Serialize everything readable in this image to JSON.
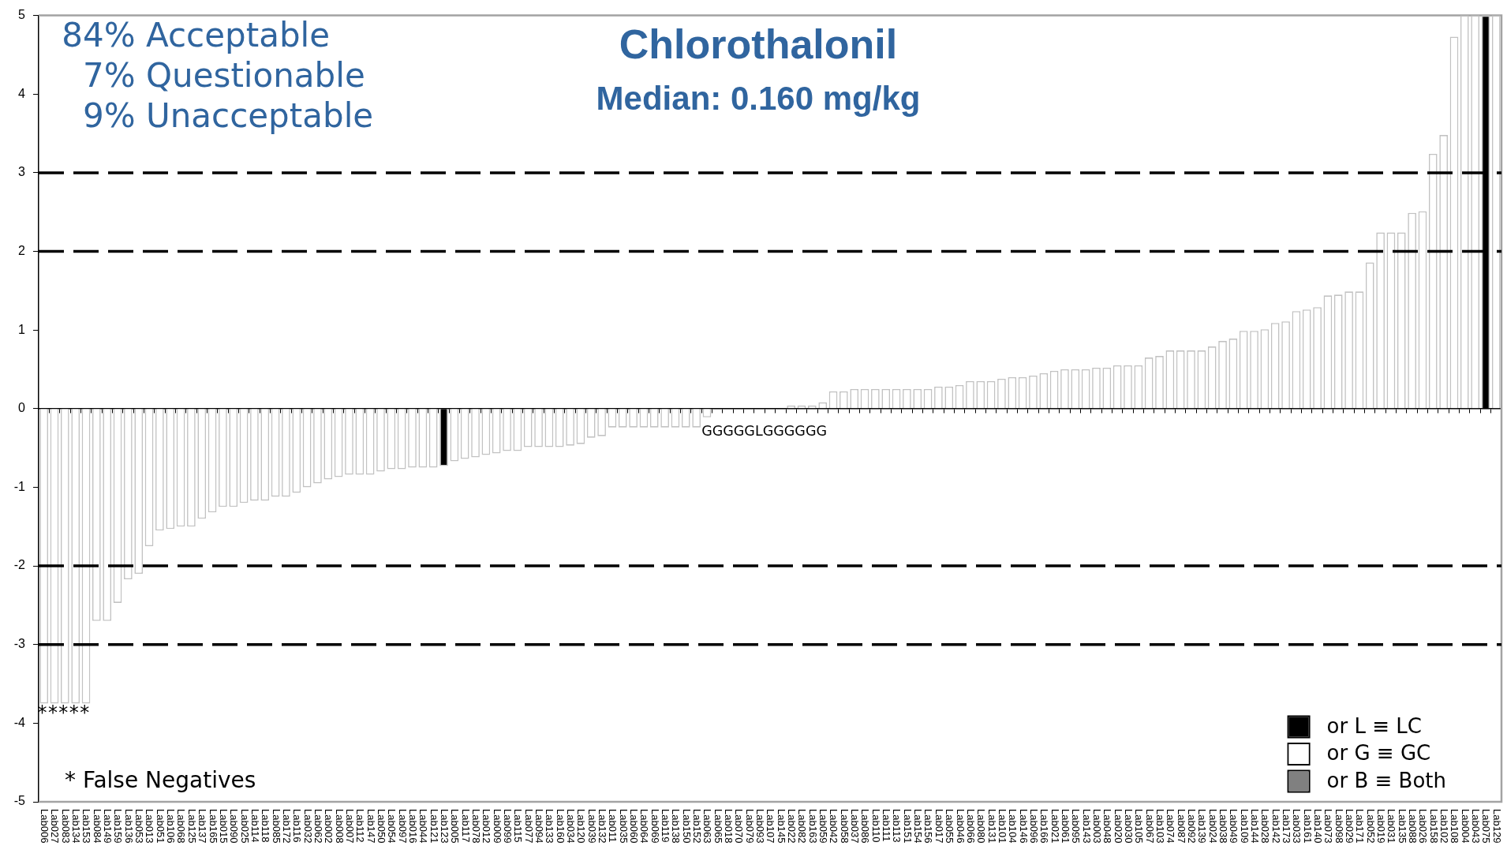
{
  "chart_data": {
    "type": "bar",
    "title": "Chlorothalonil",
    "subtitle": "Median: 0.160 mg/kg",
    "categories": [
      "Lab006",
      "Lab027",
      "Lab083",
      "Lab134",
      "Lab153",
      "Lab084",
      "Lab149",
      "Lab159",
      "Lab136",
      "Lab053",
      "Lab013",
      "Lab051",
      "Lab106",
      "Lab068",
      "Lab125",
      "Lab137",
      "Lab165",
      "Lab015",
      "Lab090",
      "Lab025",
      "Lab114",
      "Lab118",
      "Lab085",
      "Lab172",
      "Lab116",
      "Lab032",
      "Lab062",
      "Lab002",
      "Lab008",
      "Lab007",
      "Lab112",
      "Lab147",
      "Lab050",
      "Lab054",
      "Lab097",
      "Lab016",
      "Lab044",
      "Lab121",
      "Lab123",
      "Lab005",
      "Lab117",
      "Lab078",
      "Lab012",
      "Lab009",
      "Lab099",
      "Lab115",
      "Lab077",
      "Lab094",
      "Lab133",
      "Lab160",
      "Lab034",
      "Lab120",
      "Lab039",
      "Lab132",
      "Lab011",
      "Lab035",
      "Lab060",
      "Lab064",
      "Lab069",
      "Lab119",
      "Lab138",
      "Lab150",
      "Lab152",
      "Lab063",
      "Lab065",
      "Lab018",
      "Lab070",
      "Lab079",
      "Lab093",
      "Lab107",
      "Lab145",
      "Lab022",
      "Lab082",
      "Lab163",
      "Lab059",
      "Lab042",
      "Lab058",
      "Lab037",
      "Lab086",
      "Lab110",
      "Lab111",
      "Lab113",
      "Lab151",
      "Lab154",
      "Lab156",
      "Lab017",
      "Lab055",
      "Lab046",
      "Lab066",
      "Lab080",
      "Lab131",
      "Lab101",
      "Lab104",
      "Lab146",
      "Lab096",
      "Lab166",
      "Lab021",
      "Lab061",
      "Lab095",
      "Lab143",
      "Lab003",
      "Lab048",
      "Lab020",
      "Lab030",
      "Lab105",
      "Lab067",
      "Lab103",
      "Lab074",
      "Lab087",
      "Lab092",
      "Lab139",
      "Lab024",
      "Lab038",
      "Lab049",
      "Lab109",
      "Lab144",
      "Lab028",
      "Lab142",
      "Lab173",
      "Lab033",
      "Lab161",
      "Lab140",
      "Lab073",
      "Lab098",
      "Lab029",
      "Lab171",
      "Lab052",
      "Lab019",
      "Lab031",
      "Lab135",
      "Lab088",
      "Lab026",
      "Lab158",
      "Lab102",
      "Lab108",
      "Lab004",
      "Lab043",
      "Lab075",
      "Lab129"
    ],
    "series": [
      {
        "name": "or L ≡ LC",
        "color": "#000000",
        "values": [
          null,
          null,
          null,
          null,
          null,
          null,
          null,
          null,
          null,
          null,
          null,
          null,
          null,
          null,
          null,
          null,
          null,
          null,
          null,
          null,
          null,
          null,
          null,
          null,
          null,
          null,
          null,
          null,
          null,
          null,
          null,
          null,
          null,
          null,
          null,
          null,
          null,
          null,
          -0.73,
          null,
          null,
          null,
          null,
          null,
          null,
          null,
          null,
          null,
          null,
          null,
          null,
          null,
          null,
          null,
          null,
          null,
          null,
          null,
          null,
          null,
          null,
          null,
          null,
          null,
          null,
          null,
          null,
          null,
          null,
          null,
          null,
          null,
          null,
          null,
          null,
          null,
          null,
          null,
          null,
          null,
          null,
          null,
          null,
          null,
          null,
          null,
          null,
          null,
          null,
          null,
          null,
          null,
          null,
          null,
          null,
          null,
          null,
          null,
          null,
          null,
          null,
          null,
          null,
          null,
          null,
          null,
          null,
          null,
          null,
          null,
          null,
          null,
          null,
          null,
          null,
          null,
          null,
          null,
          null,
          null,
          null,
          null,
          null,
          null,
          null,
          null,
          null,
          null,
          null,
          null,
          null,
          null,
          null,
          null,
          null,
          null,
          null,
          5,
          null
        ]
      },
      {
        "name": "or G ≡ GC",
        "color": "#ffffff",
        "values": [
          -3.75,
          -3.75,
          -3.75,
          -3.75,
          -3.75,
          -2.7,
          -2.7,
          -2.47,
          -2.17,
          -2.1,
          -1.75,
          -1.55,
          -1.53,
          -1.5,
          -1.5,
          -1.4,
          -1.32,
          -1.25,
          -1.25,
          -1.2,
          -1.17,
          -1.17,
          -1.12,
          -1.12,
          -1.07,
          -1,
          -0.95,
          -0.9,
          -0.87,
          -0.84,
          -0.84,
          -0.84,
          -0.8,
          -0.77,
          -0.77,
          -0.75,
          -0.75,
          -0.75,
          null,
          -0.67,
          -0.64,
          -0.62,
          -0.59,
          -0.57,
          -0.54,
          -0.54,
          -0.49,
          -0.49,
          -0.49,
          -0.49,
          -0.47,
          -0.45,
          -0.37,
          -0.35,
          -0.24,
          -0.24,
          -0.24,
          -0.24,
          -0.24,
          -0.24,
          -0.24,
          -0.24,
          -0.24,
          -0.11,
          0,
          0,
          0,
          0,
          0,
          0,
          0,
          0.04,
          0.04,
          0.04,
          0.08,
          0.22,
          0.22,
          0.25,
          0.25,
          0.25,
          0.25,
          0.25,
          0.25,
          0.25,
          0.25,
          0.28,
          0.28,
          0.3,
          0.35,
          0.35,
          0.35,
          0.38,
          0.4,
          0.4,
          0.42,
          0.45,
          0.48,
          0.5,
          0.5,
          0.5,
          0.52,
          0.52,
          0.55,
          0.55,
          0.55,
          0.65,
          0.67,
          0.74,
          0.74,
          0.74,
          0.74,
          0.79,
          0.86,
          0.89,
          0.99,
          0.99,
          1.01,
          1.09,
          1.11,
          1.24,
          1.26,
          1.29,
          1.44,
          1.45,
          1.49,
          1.49,
          1.86,
          2.24,
          2.24,
          2.24,
          2.49,
          2.51,
          3.24,
          3.48,
          4.73,
          5,
          5,
          null,
          5
        ]
      },
      {
        "name": "or B ≡ Both",
        "color": "#808080",
        "values": [
          null,
          null,
          null,
          null,
          null,
          null,
          null,
          null,
          null,
          null,
          null,
          null,
          null,
          null,
          null,
          null,
          null,
          null,
          null,
          null,
          null,
          null,
          null,
          null,
          null,
          null,
          null,
          null,
          null,
          null,
          null,
          null,
          null,
          null,
          null,
          null,
          null,
          null,
          null,
          null,
          null,
          null,
          null,
          null,
          null,
          null,
          null,
          null,
          null,
          null,
          null,
          null,
          null,
          null,
          null,
          null,
          null,
          null,
          null,
          null,
          null,
          null,
          null,
          null,
          null,
          null,
          null,
          null,
          null,
          null,
          null,
          null,
          null,
          null,
          null,
          null,
          null,
          null,
          null,
          null,
          null,
          null,
          null,
          null,
          null,
          null,
          null,
          null,
          null,
          null,
          null,
          null,
          null,
          null,
          null,
          null,
          null,
          null,
          null,
          null,
          null,
          null,
          null,
          null,
          null,
          null,
          null,
          null,
          null,
          null,
          null,
          null,
          null,
          null,
          null,
          null,
          null,
          null,
          null,
          null,
          null,
          null,
          null,
          null,
          null,
          null,
          null,
          null,
          null,
          null,
          null,
          null,
          null,
          null,
          null,
          null,
          null,
          null,
          null
        ]
      }
    ],
    "ylim": [
      -5,
      5
    ],
    "yticks": [
      -5,
      -4,
      -3,
      -2,
      -1,
      0,
      1,
      2,
      3,
      4,
      5
    ],
    "grid": false,
    "legend": "bottom right",
    "ref_lines": [
      {
        "axis": "y",
        "value": 3,
        "line_style": "dashed",
        "color": "#000000"
      },
      {
        "axis": "y",
        "value": 2,
        "line_style": "dashed",
        "color": "#000000"
      },
      {
        "axis": "y",
        "value": -2,
        "line_style": "dashed",
        "color": "#000000"
      },
      {
        "axis": "y",
        "value": -3,
        "line_style": "dashed",
        "color": "#000000"
      }
    ],
    "annotations": [
      "84% Acceptable",
      "7% Questionable",
      "9% Unacceptable",
      "* False Negatives",
      "*****",
      "GGGGGLGGGGGG"
    ]
  }
}
